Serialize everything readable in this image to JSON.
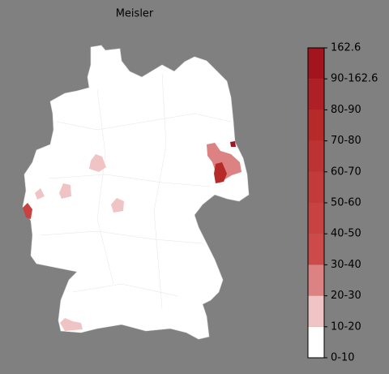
{
  "title": "Meisler",
  "colorbar": {
    "labels": [
      "0-10",
      "10-20",
      "20-30",
      "30-40",
      "40-50",
      "50-60",
      "60-70",
      "70-80",
      "80-90",
      "90-162.6",
      "162.6"
    ],
    "colors": [
      "#ffffff",
      "#f0c4c4",
      "#dc8282",
      "#cc4a4a",
      "#c94242",
      "#c33a3a",
      "#bd3232",
      "#b72a2a",
      "#ae1f26",
      "#a3141f"
    ]
  }
}
